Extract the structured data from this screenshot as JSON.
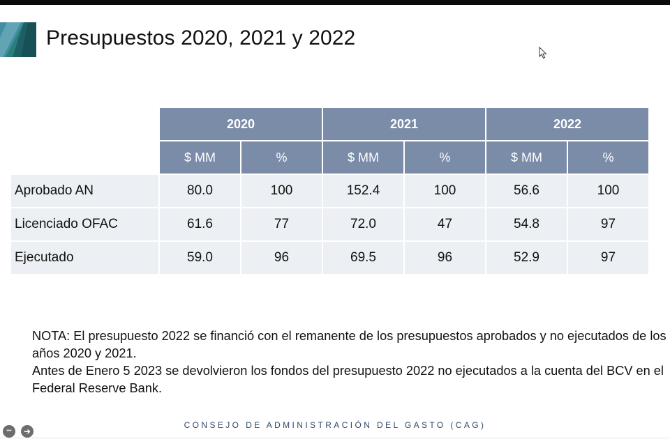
{
  "slide": {
    "title": "Presupuestos 2020, 2021 y 2022"
  },
  "table": {
    "years": [
      "2020",
      "2021",
      "2022"
    ],
    "subheaders": [
      "$ MM",
      "%",
      "$ MM",
      "%",
      "$ MM",
      "%"
    ],
    "rows": [
      {
        "label": "Aprobado AN",
        "cells": [
          "80.0",
          "100",
          "152.4",
          "100",
          "56.6",
          "100"
        ]
      },
      {
        "label": "Licenciado OFAC",
        "cells": [
          "61.6",
          "77",
          "72.0",
          "47",
          "54.8",
          "97"
        ]
      },
      {
        "label": "Ejecutado",
        "cells": [
          "59.0",
          "96",
          "69.5",
          "96",
          "52.9",
          "97"
        ]
      }
    ]
  },
  "note": {
    "paragraph1": "NOTA: El presupuesto 2022 se financió con el remanente de los presupuestos aprobados y no ejecutados de los años 2020 y 2021.",
    "paragraph2": "Antes de Enero 5 2023 se devolvieron los fondos del presupuesto 2022 no ejecutados a la cuenta del BCV en el Federal Reserve Bank."
  },
  "footer": {
    "text": "CONSEJO DE ADMINISTRACIÓN DEL GASTO (CAG)"
  },
  "controls": {
    "more_icon": "more-icon",
    "next_icon": "arrow-right-icon",
    "more_glyph": "•••",
    "next_glyph": "➜"
  },
  "colors": {
    "header_bg": "#7a8ca7",
    "cell_bg": "#eceff3",
    "logo_teal": "#1f6a6e",
    "footer_text": "#2f4a6d"
  }
}
